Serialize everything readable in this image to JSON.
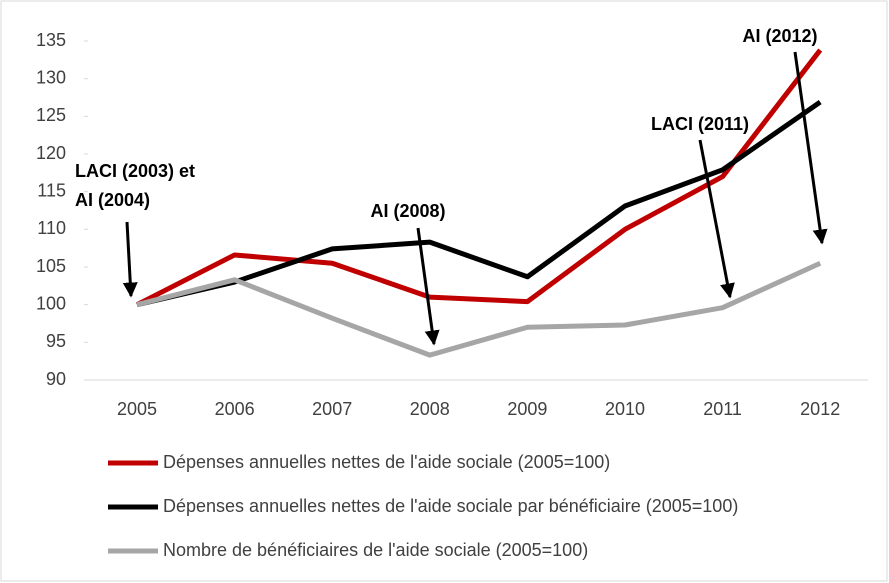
{
  "chart_data": {
    "type": "line",
    "categories": [
      "2005",
      "2006",
      "2007",
      "2008",
      "2009",
      "2010",
      "2011",
      "2012"
    ],
    "series": [
      {
        "name": "Dépenses annuelles nettes de l'aide sociale (2005=100)",
        "color": "#c00000",
        "values": [
          100,
          106.6,
          105.5,
          101,
          100.4,
          110,
          117,
          133.8
        ]
      },
      {
        "name": "Dépenses annuelles nettes de l'aide sociale par bénéficiaire (2005=100)",
        "color": "#000000",
        "values": [
          100,
          103,
          107.4,
          108.3,
          103.7,
          113.1,
          117.9,
          126.9
        ]
      },
      {
        "name": "Nombre de bénéficiaires de l'aide sociale (2005=100)",
        "color": "#a6a6a6",
        "values": [
          100,
          103.3,
          98.2,
          93.3,
          97,
          97.3,
          99.6,
          105.5
        ]
      }
    ],
    "ylim": [
      90,
      135
    ],
    "yticks": [
      90,
      95,
      100,
      105,
      110,
      115,
      120,
      125,
      130,
      135
    ],
    "annotations": [
      [
        "LACI (2003) et",
        "AI (2004)"
      ],
      [
        "AI (2008)"
      ],
      [
        "LACI (2011)"
      ],
      [
        "AI (2012)"
      ]
    ],
    "legend": "bottom",
    "grid": false
  }
}
